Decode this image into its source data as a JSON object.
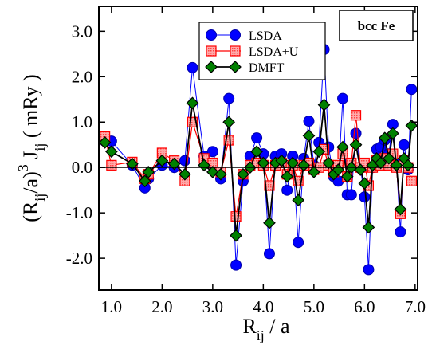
{
  "chart_data": {
    "type": "line",
    "annotation": "bcc Fe",
    "xlabel": {
      "main": "R",
      "sub": "ij",
      "rest": " / a"
    },
    "ylabel": {
      "open": "(R",
      "sub1": "ij",
      "mid": "/a)",
      "sup": "3",
      "j": " J",
      "sub2": "ij",
      "rest": " ( mRy )"
    },
    "xlim": [
      0.75,
      7.05
    ],
    "ylim": [
      -2.7,
      3.55
    ],
    "xticks": [
      {
        "value": 1.0,
        "label": "1.0"
      },
      {
        "value": 2.0,
        "label": "2.0"
      },
      {
        "value": 3.0,
        "label": "3.0"
      },
      {
        "value": 4.0,
        "label": "4.0"
      },
      {
        "value": 5.0,
        "label": "5.0"
      },
      {
        "value": 6.0,
        "label": "6.0"
      },
      {
        "value": 7.0,
        "label": "7.0"
      }
    ],
    "yticks": [
      {
        "value": -2.0,
        "label": "-2.0"
      },
      {
        "value": -1.0,
        "label": "-1.0"
      },
      {
        "value": 0.0,
        "label": "0.0"
      },
      {
        "value": 1.0,
        "label": "1.0"
      },
      {
        "value": 2.0,
        "label": "2.0"
      },
      {
        "value": 3.0,
        "label": "3.0"
      }
    ],
    "legend_position": "top-center",
    "series": [
      {
        "name": "LSDA",
        "marker": "circle",
        "color": "#0000ff",
        "points": [
          [
            0.87,
            0.58
          ],
          [
            1.0,
            0.58
          ],
          [
            1.41,
            0.05
          ],
          [
            1.66,
            -0.45
          ],
          [
            1.73,
            -0.25
          ],
          [
            2.0,
            0.05
          ],
          [
            2.24,
            0.0
          ],
          [
            2.45,
            0.15
          ],
          [
            2.6,
            2.2
          ],
          [
            2.83,
            0.25
          ],
          [
            3.0,
            0.35
          ],
          [
            3.16,
            -0.25
          ],
          [
            3.32,
            1.52
          ],
          [
            3.46,
            -2.15
          ],
          [
            3.6,
            -0.3
          ],
          [
            3.74,
            0.25
          ],
          [
            3.87,
            0.65
          ],
          [
            4.0,
            0.3
          ],
          [
            4.12,
            -1.9
          ],
          [
            4.24,
            0.25
          ],
          [
            4.36,
            0.3
          ],
          [
            4.47,
            -0.5
          ],
          [
            4.58,
            0.25
          ],
          [
            4.69,
            -1.65
          ],
          [
            4.8,
            0.2
          ],
          [
            4.9,
            1.02
          ],
          [
            5.0,
            0.05
          ],
          [
            5.1,
            0.55
          ],
          [
            5.2,
            2.6
          ],
          [
            5.29,
            0.45
          ],
          [
            5.39,
            -0.2
          ],
          [
            5.48,
            -0.3
          ],
          [
            5.57,
            1.52
          ],
          [
            5.66,
            -0.6
          ],
          [
            5.74,
            -0.6
          ],
          [
            5.83,
            0.75
          ],
          [
            5.92,
            0.0
          ],
          [
            6.0,
            -0.65
          ],
          [
            6.08,
            -2.25
          ],
          [
            6.16,
            0.0
          ],
          [
            6.24,
            0.4
          ],
          [
            6.32,
            0.45
          ],
          [
            6.4,
            0.6
          ],
          [
            6.48,
            0.3
          ],
          [
            6.56,
            0.95
          ],
          [
            6.63,
            0.1
          ],
          [
            6.71,
            -1.42
          ],
          [
            6.78,
            0.5
          ],
          [
            6.86,
            -0.05
          ],
          [
            6.93,
            1.72
          ]
        ]
      },
      {
        "name": "LSDA+U",
        "marker": "square",
        "color": "#ff0000",
        "points": [
          [
            0.87,
            0.68
          ],
          [
            1.0,
            0.05
          ],
          [
            1.41,
            0.12
          ],
          [
            1.66,
            -0.25
          ],
          [
            1.73,
            -0.15
          ],
          [
            2.0,
            0.32
          ],
          [
            2.24,
            0.15
          ],
          [
            2.45,
            -0.3
          ],
          [
            2.6,
            1.0
          ],
          [
            2.83,
            0.2
          ],
          [
            3.0,
            0.1
          ],
          [
            3.16,
            -0.1
          ],
          [
            3.32,
            0.6
          ],
          [
            3.46,
            -1.08
          ],
          [
            3.6,
            -0.15
          ],
          [
            3.74,
            0.05
          ],
          [
            3.87,
            0.1
          ],
          [
            4.0,
            0.05
          ],
          [
            4.12,
            -0.4
          ],
          [
            4.24,
            0.05
          ],
          [
            4.36,
            0.1
          ],
          [
            4.47,
            -0.15
          ],
          [
            4.58,
            0.05
          ],
          [
            4.69,
            -0.3
          ],
          [
            4.8,
            0.05
          ],
          [
            4.9,
            0.1
          ],
          [
            5.0,
            -0.05
          ],
          [
            5.1,
            0.0
          ],
          [
            5.2,
            0.4
          ],
          [
            5.29,
            0.05
          ],
          [
            5.39,
            -0.1
          ],
          [
            5.48,
            0.05
          ],
          [
            5.57,
            0.3
          ],
          [
            5.66,
            -0.2
          ],
          [
            5.74,
            0.1
          ],
          [
            5.83,
            1.15
          ],
          [
            5.92,
            0.0
          ],
          [
            6.0,
            0.1
          ],
          [
            6.08,
            -0.4
          ],
          [
            6.16,
            0.0
          ],
          [
            6.24,
            0.15
          ],
          [
            6.32,
            0.05
          ],
          [
            6.4,
            0.2
          ],
          [
            6.48,
            0.05
          ],
          [
            6.56,
            0.3
          ],
          [
            6.63,
            0.0
          ],
          [
            6.71,
            -1.02
          ],
          [
            6.78,
            0.15
          ],
          [
            6.86,
            0.0
          ],
          [
            6.93,
            -0.3
          ]
        ]
      },
      {
        "name": "DMFT",
        "marker": "diamond",
        "color": "#008000",
        "points": [
          [
            0.87,
            0.55
          ],
          [
            1.0,
            0.35
          ],
          [
            1.41,
            0.08
          ],
          [
            1.66,
            -0.3
          ],
          [
            1.73,
            -0.1
          ],
          [
            2.0,
            0.15
          ],
          [
            2.24,
            0.08
          ],
          [
            2.45,
            -0.15
          ],
          [
            2.6,
            1.42
          ],
          [
            2.83,
            0.05
          ],
          [
            3.0,
            -0.1
          ],
          [
            3.16,
            -0.15
          ],
          [
            3.32,
            1.0
          ],
          [
            3.46,
            -1.5
          ],
          [
            3.6,
            -0.15
          ],
          [
            3.74,
            0.0
          ],
          [
            3.87,
            0.35
          ],
          [
            4.0,
            0.1
          ],
          [
            4.12,
            -1.22
          ],
          [
            4.24,
            0.1
          ],
          [
            4.36,
            0.15
          ],
          [
            4.47,
            -0.2
          ],
          [
            4.58,
            0.1
          ],
          [
            4.69,
            -0.72
          ],
          [
            4.8,
            0.05
          ],
          [
            4.9,
            0.7
          ],
          [
            5.0,
            -0.1
          ],
          [
            5.1,
            0.35
          ],
          [
            5.2,
            1.38
          ],
          [
            5.29,
            0.1
          ],
          [
            5.39,
            -0.15
          ],
          [
            5.48,
            -0.05
          ],
          [
            5.57,
            0.45
          ],
          [
            5.66,
            -0.2
          ],
          [
            5.74,
            0.0
          ],
          [
            5.83,
            0.5
          ],
          [
            5.92,
            -0.05
          ],
          [
            6.0,
            -0.35
          ],
          [
            6.08,
            -1.32
          ],
          [
            6.16,
            0.05
          ],
          [
            6.24,
            0.2
          ],
          [
            6.32,
            0.1
          ],
          [
            6.4,
            0.65
          ],
          [
            6.48,
            0.2
          ],
          [
            6.56,
            0.75
          ],
          [
            6.63,
            0.05
          ],
          [
            6.71,
            -0.92
          ],
          [
            6.78,
            0.2
          ],
          [
            6.86,
            0.05
          ],
          [
            6.93,
            0.92
          ]
        ]
      }
    ]
  }
}
